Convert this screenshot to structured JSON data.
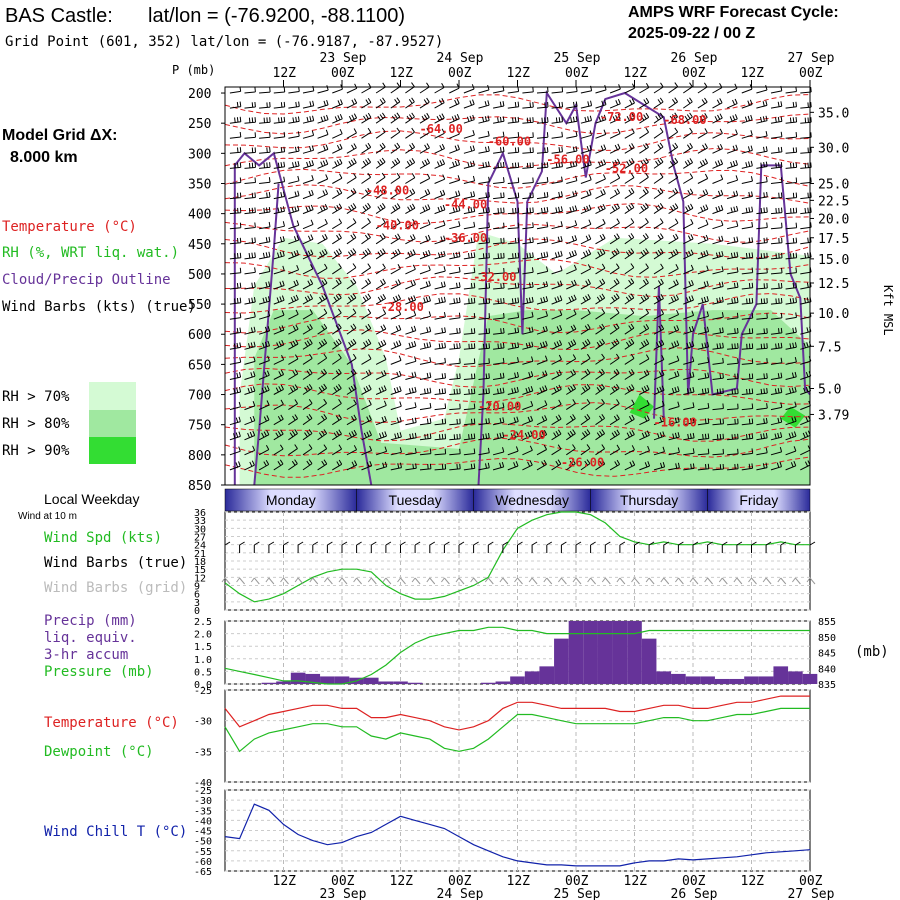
{
  "header": {
    "station": "BAS Castle:",
    "latlon_title": "lat/lon = (-76.9200, -88.1100)",
    "grid_point": "Grid Point (601, 352) lat/lon = (-76.9187, -87.9527)",
    "cycle_title": "AMPS WRF Forecast Cycle:",
    "cycle_value": "2025-09-22 / 00  Z",
    "model_grid_label": "Model Grid ΔX:",
    "model_grid_value": "8.000 km"
  },
  "legend": {
    "temperature": "Temperature (°C)",
    "rh": "RH (%, WRT liq. wat.)",
    "cloud": "Cloud/Precip Outline",
    "wind": "Wind Barbs (kts) (true)",
    "rh70": "RH > 70%",
    "rh80": "RH > 80%",
    "rh90": "RH > 90%",
    "rh_colors": [
      "#d4fad4",
      "#a0e8a0",
      "#33dd33"
    ]
  },
  "axes": {
    "p_label": "P (mb)",
    "kft_label": "Kft MSL",
    "time_top": [
      {
        "t": "12Z",
        "d": "23 Sep",
        "h": 12
      },
      {
        "t": "00Z",
        "d": "",
        "h": 24
      },
      {
        "t": "12Z",
        "d": "24 Sep",
        "h": 36
      },
      {
        "t": "00Z",
        "d": "",
        "h": 48
      },
      {
        "t": "12Z",
        "d": "25 Sep",
        "h": 60
      },
      {
        "t": "00Z",
        "d": "",
        "h": 72
      },
      {
        "t": "12Z",
        "d": "26 Sep",
        "h": 84
      },
      {
        "t": "00Z",
        "d": "",
        "h": 96
      },
      {
        "t": "12Z",
        "d": "27 Sep",
        "h": 108
      },
      {
        "t": "00Z",
        "d": "",
        "h": 120
      }
    ],
    "time_bottom": [
      {
        "t": "12Z",
        "d": "23 Sep",
        "h": 12
      },
      {
        "t": "00Z",
        "d": "",
        "h": 24
      },
      {
        "t": "12Z",
        "d": "24 Sep",
        "h": 36
      },
      {
        "t": "00Z",
        "d": "",
        "h": 48
      },
      {
        "t": "12Z",
        "d": "25 Sep",
        "h": 60
      },
      {
        "t": "00Z",
        "d": "",
        "h": 72
      },
      {
        "t": "12Z",
        "d": "26 Sep",
        "h": 84
      },
      {
        "t": "00Z",
        "d": "",
        "h": 96
      },
      {
        "t": "12Z",
        "d": "27 Sep",
        "h": 108
      },
      {
        "t": "00Z",
        "d": "",
        "h": 120
      }
    ],
    "pressure_ticks": [
      "200",
      "250",
      "300",
      "350",
      "400",
      "450",
      "500",
      "550",
      "600",
      "650",
      "700",
      "750",
      "800",
      "850"
    ],
    "kft_ticks": [
      "35.0",
      "30.0",
      "25.0",
      "22.5",
      "20.0",
      "17.5",
      "15.0",
      "12.5",
      "10.0",
      "7.5",
      "5.0",
      "3.79"
    ],
    "kft_ticks_p": [
      232,
      290,
      350,
      378,
      408,
      440,
      475,
      515,
      565,
      620,
      690,
      733
    ]
  },
  "weekday": {
    "title": "Local Weekday",
    "days": [
      "Monday",
      "Tuesday",
      "Wednesday",
      "Thursday",
      "Friday"
    ]
  },
  "chart_data": [
    {
      "type": "contour",
      "title": "Time-height cross section",
      "ylabel": "P (mb)",
      "ylim": [
        850,
        190
      ],
      "x_hours": [
        0,
        120
      ],
      "temperature_labels": [
        {
          "v": "-72.00",
          "h": 81,
          "p": 240
        },
        {
          "v": "-68.00",
          "h": 94,
          "p": 245
        },
        {
          "v": "-64.00",
          "h": 44,
          "p": 260
        },
        {
          "v": "-60.00",
          "h": 58,
          "p": 280
        },
        {
          "v": "-56.00",
          "h": 70,
          "p": 310
        },
        {
          "v": "-52.00",
          "h": 82,
          "p": 325
        },
        {
          "v": "-48.00",
          "h": 33,
          "p": 362
        },
        {
          "v": "-44.00",
          "h": 49,
          "p": 385
        },
        {
          "v": "-40.00",
          "h": 35,
          "p": 420
        },
        {
          "v": "-36.00",
          "h": 49,
          "p": 440
        },
        {
          "v": "-32.00",
          "h": 55,
          "p": 505
        },
        {
          "v": "-28.00",
          "h": 36,
          "p": 555
        },
        {
          "v": "-20.00",
          "h": 56,
          "p": 720
        },
        {
          "v": "-24.00",
          "h": 61,
          "p": 767
        },
        {
          "v": "-16.00",
          "h": 92,
          "p": 746
        },
        {
          "v": "-26.00",
          "h": 73,
          "p": 813
        }
      ]
    },
    {
      "type": "line",
      "ylabels": [
        "Wind Spd (kts)",
        "Wind Barbs (true)",
        "Wind Barbs (grid)"
      ],
      "caption": "Wind at 10 m",
      "ylim": [
        0,
        36
      ],
      "yticks": [
        0,
        3,
        6,
        9,
        12,
        15,
        18,
        21,
        24,
        27,
        30,
        33,
        36
      ],
      "x_hours": [
        0,
        3,
        6,
        9,
        12,
        15,
        18,
        21,
        24,
        27,
        30,
        33,
        36,
        39,
        42,
        45,
        48,
        51,
        54,
        57,
        60,
        63,
        66,
        69,
        72,
        75,
        78,
        81,
        84,
        87,
        90,
        93,
        96,
        99,
        102,
        105,
        108,
        111,
        114,
        117,
        120
      ],
      "wind_speed": [
        10,
        6,
        3,
        4,
        6,
        9,
        12,
        14,
        15,
        15,
        14,
        9,
        6,
        4,
        4,
        5,
        7,
        9,
        12,
        22,
        30,
        33,
        35,
        36,
        36,
        35,
        32,
        27,
        25,
        24,
        25,
        24,
        24,
        25,
        24,
        24,
        24,
        24,
        25,
        24,
        24
      ]
    },
    {
      "type": "bar_line",
      "ylabels": [
        "Precip (mm)",
        "liq. equiv.",
        "3-hr accum",
        "Pressure (mb)"
      ],
      "y2label": "(mb)",
      "ylim": [
        0,
        2.5
      ],
      "yticks": [
        "0.0",
        "0.5",
        "1.0",
        "1.5",
        "2.0",
        "2.5"
      ],
      "y2lim": [
        835,
        855
      ],
      "y2ticks": [
        "835",
        "840",
        "845",
        "850",
        "855"
      ],
      "x_hours": [
        0,
        3,
        6,
        9,
        12,
        15,
        18,
        21,
        24,
        27,
        30,
        33,
        36,
        39,
        42,
        45,
        48,
        51,
        54,
        57,
        60,
        63,
        66,
        69,
        72,
        75,
        78,
        81,
        84,
        87,
        90,
        93,
        96,
        99,
        102,
        105,
        108,
        111,
        114,
        117,
        120
      ],
      "precip": [
        0,
        0,
        0,
        0.05,
        0.1,
        0.45,
        0.4,
        0.3,
        0.3,
        0.25,
        0.25,
        0.1,
        0.1,
        0.05,
        0,
        0,
        0,
        0,
        0.05,
        0.1,
        0.3,
        0.5,
        0.7,
        1.8,
        2.5,
        2.5,
        2.5,
        2.5,
        2.5,
        1.8,
        0.5,
        0.4,
        0.3,
        0.3,
        0.2,
        0.2,
        0.3,
        0.3,
        0.7,
        0.5,
        0.4
      ],
      "pressure": [
        840,
        839,
        838,
        837,
        836,
        836,
        835.5,
        835,
        835,
        836,
        838,
        841,
        845,
        848,
        850,
        851,
        852,
        852,
        853,
        853,
        852,
        852,
        851,
        851,
        851,
        851,
        851,
        851,
        851,
        852,
        852,
        852,
        852,
        852,
        852,
        852,
        852,
        852,
        852,
        852,
        852
      ]
    },
    {
      "type": "line",
      "ylabels": [
        "Temperature (°C)",
        "Dewpoint (°C)"
      ],
      "ylim": [
        -40,
        -25
      ],
      "yticks": [
        "-25",
        "-30",
        "-35",
        "-40"
      ],
      "x_hours": [
        0,
        3,
        6,
        9,
        12,
        15,
        18,
        21,
        24,
        27,
        30,
        33,
        36,
        39,
        42,
        45,
        48,
        51,
        54,
        57,
        60,
        63,
        66,
        69,
        72,
        75,
        78,
        81,
        84,
        87,
        90,
        93,
        96,
        99,
        102,
        105,
        108,
        111,
        114,
        117,
        120
      ],
      "temperature": [
        -28,
        -31,
        -30,
        -29,
        -28.5,
        -28,
        -27.5,
        -27.5,
        -28,
        -28,
        -29.5,
        -29.5,
        -29,
        -29.5,
        -30,
        -31,
        -31.5,
        -31,
        -30,
        -28,
        -27,
        -27,
        -27.5,
        -28,
        -28,
        -28,
        -28,
        -28.5,
        -28.5,
        -28,
        -27.5,
        -27.5,
        -28,
        -28,
        -27.5,
        -27,
        -27,
        -26.5,
        -26,
        -26,
        -26
      ],
      "dewpoint": [
        -31,
        -35,
        -33,
        -32,
        -31.5,
        -31,
        -30.5,
        -30.5,
        -31,
        -31,
        -32.5,
        -33,
        -32,
        -32.5,
        -33,
        -34.5,
        -35,
        -34.5,
        -33,
        -31,
        -29,
        -29,
        -29.5,
        -30,
        -30.5,
        -30.5,
        -30.5,
        -30.5,
        -30.5,
        -30,
        -29.5,
        -29.5,
        -30,
        -30,
        -29.5,
        -29,
        -29,
        -28.5,
        -28,
        -28,
        -28
      ]
    },
    {
      "type": "line",
      "ylabels": [
        "Wind Chill T (°C)"
      ],
      "ylim": [
        -65,
        -25
      ],
      "yticks": [
        "-25",
        "-30",
        "-35",
        "-40",
        "-45",
        "-50",
        "-55",
        "-60",
        "-65"
      ],
      "x_hours": [
        0,
        3,
        6,
        9,
        12,
        15,
        18,
        21,
        24,
        27,
        30,
        33,
        36,
        39,
        42,
        45,
        48,
        51,
        54,
        57,
        60,
        63,
        66,
        69,
        72,
        75,
        78,
        81,
        84,
        87,
        90,
        93,
        96,
        99,
        102,
        105,
        108,
        111,
        114,
        117,
        120
      ],
      "wind_chill": [
        -48,
        -49,
        -32,
        -35,
        -42,
        -47,
        -50,
        -52,
        -51,
        -48,
        -46,
        -42,
        -38,
        -40,
        -42,
        -44,
        -48,
        -52,
        -55,
        -58,
        -60,
        -61,
        -62,
        -62,
        -62.5,
        -62.5,
        -62.5,
        -62.5,
        -61,
        -60,
        -60,
        -59,
        -59.5,
        -59,
        -58.5,
        -58,
        -57,
        -56,
        -55.5,
        -55,
        -54.5
      ]
    }
  ]
}
